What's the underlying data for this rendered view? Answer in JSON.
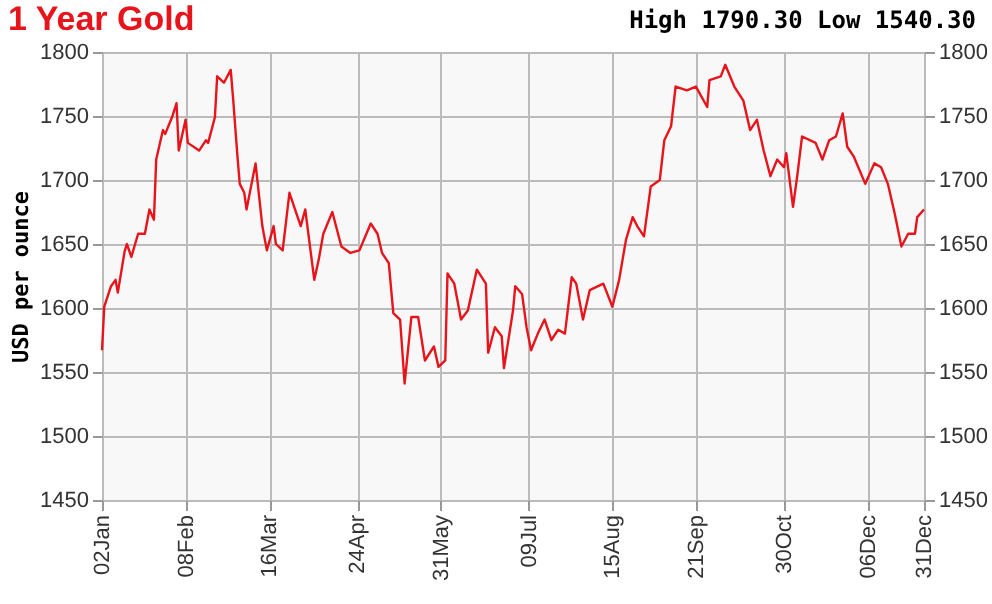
{
  "chart_data": {
    "type": "line",
    "title": "1 Year Gold",
    "ylabel": "USD per ounce",
    "annotations": [
      "High 1790.30 Low 1540.30"
    ],
    "x": [
      "--01-02",
      "--01-03",
      "--01-06",
      "--01-08",
      "--01-09",
      "--01-12",
      "--01-13",
      "--01-15",
      "--01-18",
      "--01-21",
      "--01-23",
      "--01-25",
      "--01-26",
      "--01-29",
      "--01-30",
      "--02-02",
      "--02-04",
      "--02-05",
      "--02-08",
      "--02-09",
      "--02-14",
      "--02-17",
      "--02-18",
      "--02-21",
      "--02-22",
      "--02-25",
      "--02-28",
      "--02-29",
      "--03-02",
      "--03-03",
      "--03-05",
      "--03-06",
      "--03-10",
      "--03-13",
      "--03-15",
      "--03-18",
      "--03-19",
      "--03-22",
      "--03-25",
      "--03-30",
      "--04-01",
      "--04-05",
      "--04-07",
      "--04-09",
      "--04-13",
      "--04-17",
      "--04-21",
      "--04-25",
      "--04-30",
      "--05-03",
      "--05-05",
      "--05-08",
      "--05-10",
      "--05-13",
      "--05-15",
      "--05-18",
      "--05-21",
      "--05-24",
      "--05-28",
      "--05-30",
      "--06-02",
      "--06-03",
      "--06-06",
      "--06-09",
      "--06-12",
      "--06-16",
      "--06-20",
      "--06-21",
      "--06-24",
      "--06-27",
      "--06-28",
      "--07-02",
      "--07-03",
      "--07-06",
      "--07-08",
      "--07-10",
      "--07-13",
      "--07-16",
      "--07-19",
      "--07-22",
      "--07-25",
      "--07-28",
      "--07-30",
      "--08-02",
      "--08-05",
      "--08-11",
      "--08-15",
      "--08-18",
      "--08-21",
      "--08-24",
      "--08-26",
      "--08-29",
      "--09-01",
      "--09-05",
      "--09-07",
      "--09-10",
      "--09-12",
      "--09-17",
      "--09-21",
      "--09-26",
      "--09-27",
      "--10-02",
      "--10-04",
      "--10-08",
      "--10-12",
      "--10-15",
      "--10-18",
      "--10-21",
      "--10-24",
      "--10-27",
      "--10-30",
      "--10-31",
      "--11-03",
      "--11-05",
      "--11-07",
      "--11-13",
      "--11-16",
      "--11-19",
      "--11-22",
      "--11-25",
      "--11-27",
      "--11-30",
      "--12-05",
      "--12-09",
      "--12-12",
      "--12-15",
      "--12-18",
      "--12-21",
      "--12-24",
      "--12-27",
      "--12-28",
      "--12-31"
    ],
    "series": [
      {
        "color": "#e8141b",
        "values": [
          1567,
          1601,
          1617,
          1622,
          1612,
          1644,
          1650,
          1640,
          1658,
          1658,
          1677,
          1669,
          1716,
          1739,
          1736,
          1749,
          1760,
          1723,
          1747,
          1729,
          1723,
          1731,
          1729,
          1749,
          1781,
          1776,
          1786,
          1765,
          1718,
          1697,
          1690,
          1677,
          1713,
          1664,
          1645,
          1664,
          1650,
          1645,
          1690,
          1664,
          1677,
          1622,
          1638,
          1658,
          1675,
          1648,
          1643,
          1645,
          1666,
          1658,
          1643,
          1635,
          1596,
          1591,
          1541,
          1593,
          1593,
          1559,
          1570,
          1554,
          1559,
          1627,
          1619,
          1591,
          1598,
          1630,
          1619,
          1565,
          1585,
          1578,
          1553,
          1598,
          1617,
          1611,
          1585,
          1567,
          1580,
          1591,
          1575,
          1583,
          1580,
          1624,
          1619,
          1591,
          1614,
          1619,
          1601,
          1622,
          1653,
          1671,
          1664,
          1656,
          1695,
          1700,
          1731,
          1742,
          1773,
          1770,
          1773,
          1757,
          1778,
          1781,
          1790,
          1773,
          1762,
          1739,
          1747,
          1723,
          1703,
          1716,
          1710,
          1721,
          1679,
          1705,
          1734,
          1729,
          1716,
          1731,
          1734,
          1752,
          1726,
          1718,
          1697,
          1713,
          1710,
          1697,
          1674,
          1648,
          1658,
          1658,
          1671,
          1677
        ]
      }
    ],
    "xlim": [
      "--01-02",
      "--12-31"
    ],
    "xticks": [
      {
        "value": "--01-02",
        "label": "02Jan"
      },
      {
        "value": "--02-08",
        "label": "08Feb"
      },
      {
        "value": "--03-16",
        "label": "16Mar"
      },
      {
        "value": "--04-24",
        "label": "24Apr"
      },
      {
        "value": "--05-31",
        "label": "31May"
      },
      {
        "value": "--07-09",
        "label": "09Jul"
      },
      {
        "value": "--08-15",
        "label": "15Aug"
      },
      {
        "value": "--09-21",
        "label": "21Sep"
      },
      {
        "value": "--10-30",
        "label": "30Oct"
      },
      {
        "value": "--12-06",
        "label": "06Dec"
      },
      {
        "value": "--12-31",
        "label": "31Dec"
      }
    ],
    "ylim": [
      1450,
      1800
    ],
    "yticks": [
      1450,
      1500,
      1550,
      1600,
      1650,
      1700,
      1750,
      1800
    ],
    "y2lim": [
      1450,
      1800
    ],
    "y2ticks": [
      1450,
      1500,
      1550,
      1600,
      1650,
      1700,
      1750,
      1800
    ],
    "grid": true
  }
}
